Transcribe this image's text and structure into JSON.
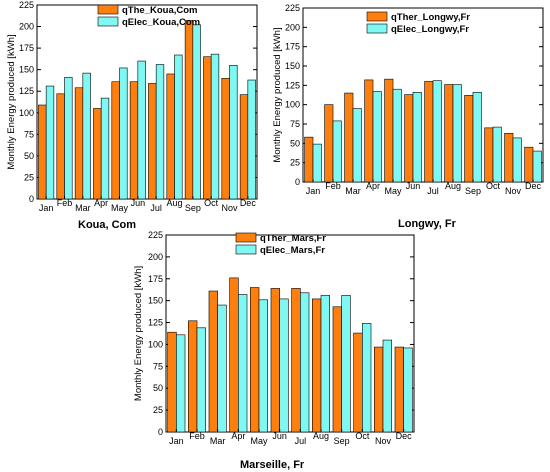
{
  "colors": {
    "ther": "#ff7f0e",
    "elec": "#7ff7f2",
    "stroke": "#000000"
  },
  "chart_data": [
    {
      "type": "bar",
      "caption": "Koua, Com",
      "ylabel": "Monthly Energy produced [kWh]",
      "xlabel": "",
      "ylim": [
        0,
        225
      ],
      "yticks": [
        0,
        25,
        50,
        75,
        100,
        125,
        150,
        175,
        200,
        225
      ],
      "legend_position": "top-left",
      "categories": [
        "Jan",
        "Feb",
        "Mar",
        "Apr",
        "May",
        "Jun",
        "Jul",
        "Aug",
        "Sep",
        "Oct",
        "Nov",
        "Dec"
      ],
      "series": [
        {
          "name": "qThe_Koua,Com",
          "values": [
            109,
            122,
            129,
            105,
            136,
            136,
            134,
            145,
            207,
            165,
            140,
            121
          ]
        },
        {
          "name": "qElec_Koua,Com",
          "values": [
            131,
            141,
            146,
            117,
            152,
            160,
            156,
            167,
            202,
            168,
            155,
            138
          ]
        }
      ]
    },
    {
      "type": "bar",
      "caption": "Longwy, Fr",
      "ylabel": "Monthly Energy produced [kWh]",
      "xlabel": "",
      "ylim": [
        0,
        225
      ],
      "yticks": [
        0,
        25,
        50,
        75,
        100,
        125,
        150,
        175,
        200,
        225
      ],
      "legend_position": "top-right",
      "categories": [
        "Jan",
        "Feb",
        "Mar",
        "Apr",
        "May",
        "Jun",
        "Jul",
        "Aug",
        "Sep",
        "Oct",
        "Nov",
        "Dec"
      ],
      "series": [
        {
          "name": "qTher_Longwy,Fr",
          "values": [
            58,
            100,
            115,
            132,
            133,
            113,
            130,
            126,
            112,
            70,
            63,
            45
          ]
        },
        {
          "name": "qElec_Longwy,Fr",
          "values": [
            49,
            79,
            95,
            117,
            120,
            116,
            131,
            126,
            116,
            71,
            57,
            40
          ]
        }
      ]
    },
    {
      "type": "bar",
      "caption": "Marseille, Fr",
      "ylabel": "Monthly Energy produced [kWh]",
      "xlabel": "",
      "ylim": [
        0,
        225
      ],
      "yticks": [
        0,
        25,
        50,
        75,
        100,
        125,
        150,
        175,
        200,
        225
      ],
      "legend_position": "top-left",
      "categories": [
        "Jan",
        "Feb",
        "Mar",
        "Apr",
        "May",
        "Jun",
        "Jul",
        "Aug",
        "Sep",
        "Oct",
        "Nov",
        "Dec"
      ],
      "series": [
        {
          "name": "qTher_Mars,Fr",
          "values": [
            114,
            127,
            161,
            176,
            165,
            164,
            164,
            152,
            143,
            113,
            97,
            97
          ]
        },
        {
          "name": "qElec_Mars,Fr",
          "values": [
            111,
            119,
            145,
            157,
            151,
            152,
            159,
            156,
            156,
            124,
            105,
            96
          ]
        }
      ]
    }
  ]
}
